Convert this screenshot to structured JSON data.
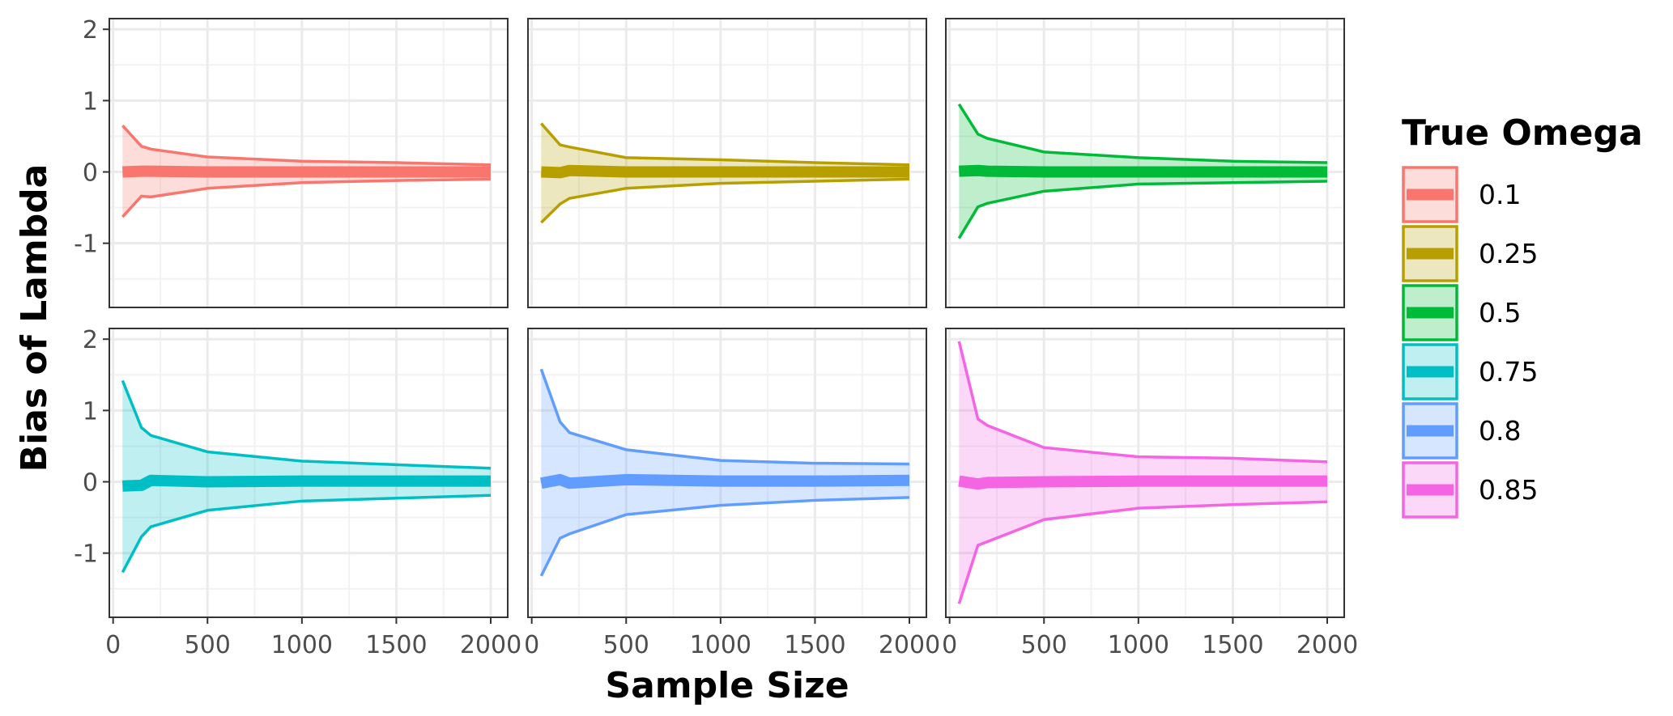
{
  "chart_data": {
    "type": "line",
    "xlabel": "Sample Size",
    "ylabel": "Bias of Lambda",
    "xlim": [
      -20,
      2090
    ],
    "ylim": [
      -1.9,
      2.15
    ],
    "x_ticks": [
      0,
      500,
      1000,
      1500,
      2000
    ],
    "x_tick_labels": [
      "0",
      "500",
      "1000",
      "1500",
      "2000"
    ],
    "y_ticks": [
      2,
      1,
      0,
      -1
    ],
    "y_tick_labels": [
      "2",
      "1",
      "0",
      "-1"
    ],
    "grid": true,
    "legend": {
      "title": "True Omega",
      "position": "right"
    },
    "x": [
      50,
      150,
      200,
      500,
      1000,
      1500,
      2000
    ],
    "series": [
      {
        "name": "0.1",
        "color": "#F8766D",
        "upper": [
          0.65,
          0.36,
          0.32,
          0.21,
          0.15,
          0.13,
          0.1
        ],
        "lower": [
          -0.63,
          -0.34,
          -0.35,
          -0.23,
          -0.15,
          -0.12,
          -0.1
        ],
        "mean": [
          0.0,
          0.01,
          0.01,
          0.0,
          0.0,
          0.0,
          0.0
        ]
      },
      {
        "name": "0.25",
        "color": "#B79F00",
        "upper": [
          0.68,
          0.38,
          0.35,
          0.2,
          0.17,
          0.13,
          0.1
        ],
        "lower": [
          -0.71,
          -0.45,
          -0.37,
          -0.23,
          -0.16,
          -0.13,
          -0.1
        ],
        "mean": [
          0.0,
          -0.01,
          0.02,
          0.0,
          0.0,
          0.0,
          0.0
        ]
      },
      {
        "name": "0.5",
        "color": "#00BA38",
        "upper": [
          0.95,
          0.53,
          0.47,
          0.28,
          0.2,
          0.15,
          0.13
        ],
        "lower": [
          -0.93,
          -0.49,
          -0.44,
          -0.27,
          -0.17,
          -0.15,
          -0.13
        ],
        "mean": [
          0.01,
          0.02,
          0.01,
          0.0,
          0.0,
          0.0,
          0.0
        ]
      },
      {
        "name": "0.75",
        "color": "#00BFC4",
        "upper": [
          1.42,
          0.76,
          0.65,
          0.42,
          0.29,
          0.24,
          0.19
        ],
        "lower": [
          -1.27,
          -0.77,
          -0.63,
          -0.4,
          -0.27,
          -0.23,
          -0.19
        ],
        "mean": [
          -0.06,
          -0.05,
          0.02,
          0.0,
          0.01,
          0.01,
          0.01
        ]
      },
      {
        "name": "0.8",
        "color": "#619CFF",
        "upper": [
          1.58,
          0.84,
          0.69,
          0.45,
          0.3,
          0.26,
          0.25
        ],
        "lower": [
          -1.32,
          -0.79,
          -0.73,
          -0.46,
          -0.33,
          -0.26,
          -0.22
        ],
        "mean": [
          -0.02,
          0.03,
          -0.02,
          0.03,
          0.01,
          0.01,
          0.02
        ]
      },
      {
        "name": "0.85",
        "color": "#F564E3",
        "upper": [
          1.97,
          0.88,
          0.79,
          0.48,
          0.35,
          0.33,
          0.28
        ],
        "lower": [
          -1.71,
          -0.89,
          -0.84,
          -0.53,
          -0.37,
          -0.32,
          -0.28
        ],
        "mean": [
          0.01,
          -0.03,
          -0.01,
          0.0,
          0.01,
          0.01,
          0.01
        ]
      }
    ]
  }
}
